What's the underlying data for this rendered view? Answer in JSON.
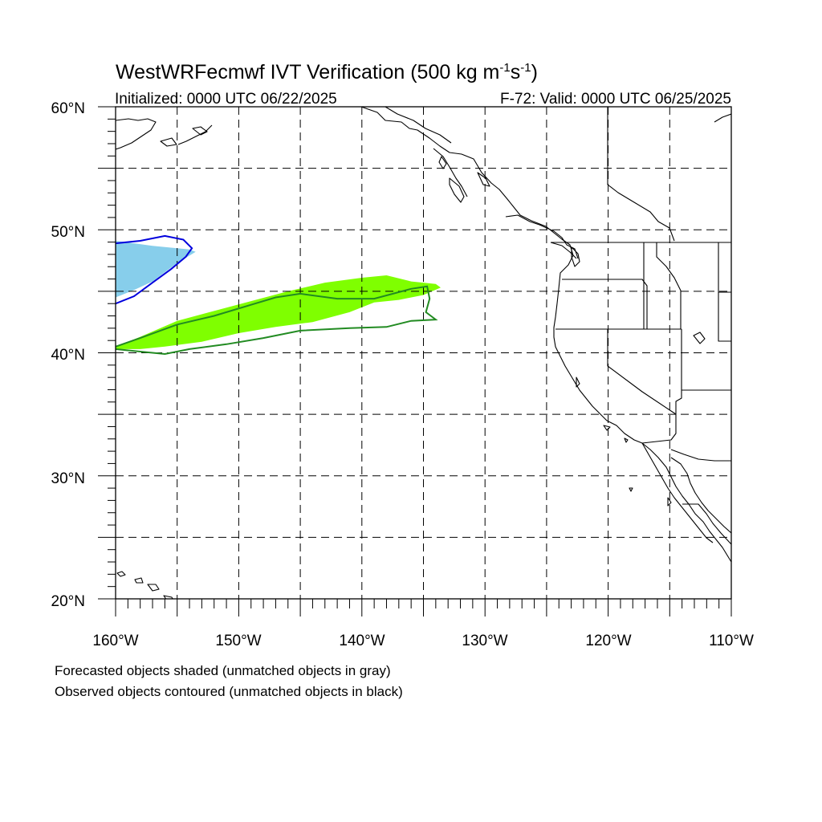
{
  "title": {
    "main": "WestWRFecmwf IVT Verification (500 kg m",
    "sup1": "-1",
    "mid": "s",
    "sup2": "-1",
    "end": ")"
  },
  "subtitle_left": "Initialized: 0000 UTC 06/22/2025",
  "subtitle_right": "F-72: Valid: 0000 UTC 06/25/2025",
  "lat_labels": [
    "60°N",
    "50°N",
    "40°N",
    "30°N",
    "20°N"
  ],
  "lon_labels": [
    "160°W",
    "150°W",
    "140°W",
    "130°W",
    "120°W",
    "110°W"
  ],
  "extent": {
    "lon_min": -160,
    "lon_max": -110,
    "lat_min": 20,
    "lat_max": 60
  },
  "grid_interval_deg": 5,
  "colors": {
    "forecast_fill_matched": "#7fff00",
    "forecast_fill_unmatched": "#87ceeb",
    "observed_contour_matched": "#228b22",
    "observed_contour_unmatched": "#0000dd",
    "coastline": "#000000"
  },
  "legend_notes": [
    "Forecasted objects shaded (unmatched objects in gray)",
    "Observed objects contoured (unmatched objects in black)"
  ],
  "objects": {
    "forecast_green": [
      [
        -160,
        40.5
      ],
      [
        -158,
        41.3
      ],
      [
        -155,
        42.6
      ],
      [
        -152,
        43.4
      ],
      [
        -149,
        44.2
      ],
      [
        -146,
        45
      ],
      [
        -143,
        45.7
      ],
      [
        -140,
        46.1
      ],
      [
        -138,
        46.3
      ],
      [
        -136,
        45.8
      ],
      [
        -134,
        45.6
      ],
      [
        -133.6,
        45.3
      ],
      [
        -135,
        44.7
      ],
      [
        -137,
        44.3
      ],
      [
        -139,
        44.1
      ],
      [
        -141,
        43.3
      ],
      [
        -144,
        42.5
      ],
      [
        -147,
        42.1
      ],
      [
        -150,
        41.6
      ],
      [
        -153,
        40.9
      ],
      [
        -156,
        40.5
      ],
      [
        -158,
        40.3
      ],
      [
        -160,
        40.3
      ]
    ],
    "forecast_blue": [
      [
        -160,
        49.1
      ],
      [
        -157,
        48.7
      ],
      [
        -154,
        48.4
      ],
      [
        -153.5,
        48.2
      ],
      [
        -155,
        47.3
      ],
      [
        -157,
        45.8
      ],
      [
        -158.5,
        45.1
      ],
      [
        -160,
        44.5
      ]
    ],
    "observed_green": [
      [
        -160,
        40.5
      ],
      [
        -158,
        41.2
      ],
      [
        -155,
        42.3
      ],
      [
        -152,
        43
      ],
      [
        -149,
        43.9
      ],
      [
        -147,
        44.5
      ],
      [
        -145,
        44.8
      ],
      [
        -142,
        44.4
      ],
      [
        -139,
        44.4
      ],
      [
        -136,
        45.2
      ],
      [
        -134.7,
        45.4
      ],
      [
        -134.5,
        44.4
      ],
      [
        -134.8,
        43.3
      ],
      [
        -134,
        42.7
      ],
      [
        -136,
        42.6
      ],
      [
        -138,
        42.1
      ],
      [
        -141,
        42
      ],
      [
        -145,
        41.8
      ],
      [
        -148,
        41.2
      ],
      [
        -151,
        40.7
      ],
      [
        -154,
        40.3
      ],
      [
        -156,
        39.9
      ],
      [
        -158,
        40.1
      ],
      [
        -160,
        40.3
      ]
    ],
    "observed_blue": [
      [
        -160,
        48.9
      ],
      [
        -158,
        49.1
      ],
      [
        -156,
        49.5
      ],
      [
        -154.5,
        49.2
      ],
      [
        -153.8,
        48.5
      ],
      [
        -154.3,
        47.8
      ],
      [
        -155.5,
        46.8
      ],
      [
        -157,
        45.7
      ],
      [
        -158.5,
        44.6
      ],
      [
        -160,
        44
      ]
    ]
  }
}
